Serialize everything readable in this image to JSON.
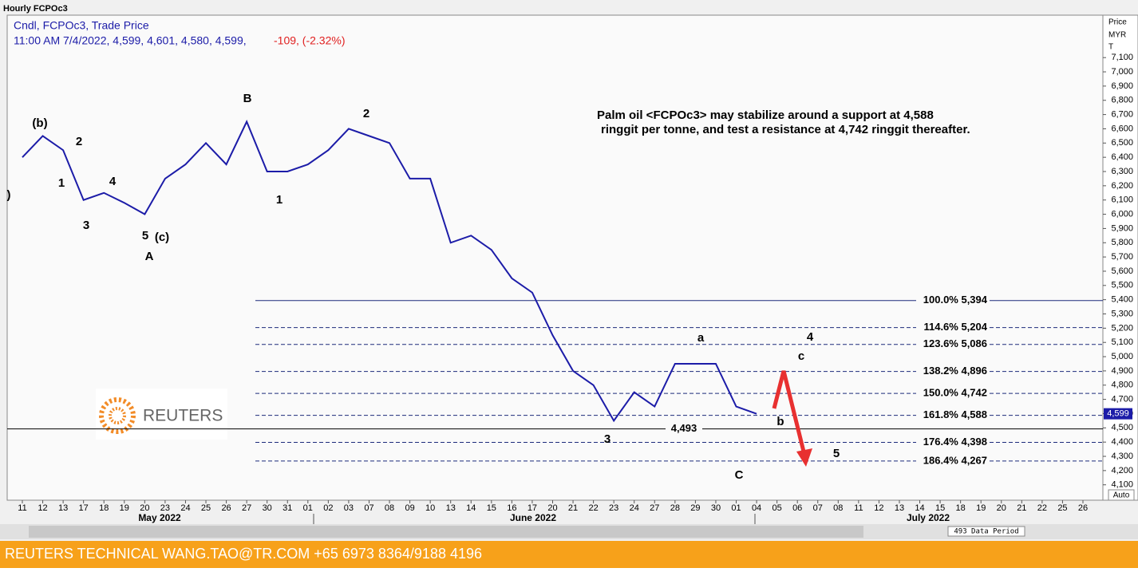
{
  "chart_data": {
    "type": "line",
    "window_title": "Hourly FCPOc3",
    "header_line1": "Cndl, FCPOc3, Trade Price",
    "header_line2": "11:00 AM 7/4/2022, 4,599, 4,601, 4,580, 4,599,",
    "header_change": "-109, (-2.32%)",
    "axis_header": [
      "Price",
      "MYR",
      "T"
    ],
    "commentary": [
      "Palm oil <FCPOc3> may stabilize around a support at 4,588",
      "ringgit per tonne, and test a resistance at 4,742 ringgit thereafter."
    ],
    "categories": [
      "11",
      "12",
      "13",
      "17",
      "18",
      "19",
      "20",
      "23",
      "24",
      "25",
      "26",
      "27",
      "30",
      "31",
      "01",
      "02",
      "03",
      "07",
      "08",
      "09",
      "10",
      "13",
      "14",
      "15",
      "16",
      "17",
      "20",
      "21",
      "22",
      "23",
      "24",
      "27",
      "28",
      "29",
      "30",
      "01",
      "04",
      "05",
      "06",
      "07",
      "08",
      "11",
      "12",
      "13",
      "14",
      "15",
      "18",
      "19",
      "20",
      "21",
      "22",
      "25",
      "26"
    ],
    "months": [
      "May 2022",
      "June 2022",
      "July 2022"
    ],
    "series": [
      {
        "color": "#1c1ca8",
        "values": [
          6400,
          6550,
          6450,
          6100,
          6150,
          6080,
          6000,
          6250,
          6350,
          6500,
          6350,
          6650,
          6300,
          6300,
          6350,
          6450,
          6600,
          6550,
          6500,
          6250,
          6250,
          5800,
          5850,
          5750,
          5550,
          5450,
          5150,
          4900,
          4800,
          4550,
          4750,
          4650,
          4950,
          4950,
          4950,
          4650,
          4599,
          null,
          null,
          null,
          null,
          null,
          null,
          null,
          null,
          null,
          null,
          null,
          null,
          null,
          null,
          null,
          null
        ]
      }
    ],
    "ylim": [
      3992,
      7398
    ],
    "yticks": [
      {
        "value": 4100,
        "label": "4,100"
      },
      {
        "value": 4200,
        "label": "4,200"
      },
      {
        "value": 4300,
        "label": "4,300"
      },
      {
        "value": 4400,
        "label": "4,400"
      },
      {
        "value": 4500,
        "label": "4,500"
      },
      {
        "value": 4600,
        "label": "4,600"
      },
      {
        "value": 4700,
        "label": "4,700"
      },
      {
        "value": 4800,
        "label": "4,800"
      },
      {
        "value": 4900,
        "label": "4,900"
      },
      {
        "value": 5000,
        "label": "5,000"
      },
      {
        "value": 5100,
        "label": "5,100"
      },
      {
        "value": 5200,
        "label": "5,200"
      },
      {
        "value": 5300,
        "label": "5,300"
      },
      {
        "value": 5400,
        "label": "5,400"
      },
      {
        "value": 5500,
        "label": "5,500"
      },
      {
        "value": 5600,
        "label": "5,600"
      },
      {
        "value": 5700,
        "label": "5,700"
      },
      {
        "value": 5800,
        "label": "5,800"
      },
      {
        "value": 5900,
        "label": "5,900"
      },
      {
        "value": 6000,
        "label": "6,000"
      },
      {
        "value": 6100,
        "label": "6,100"
      },
      {
        "value": 6200,
        "label": "6,200"
      },
      {
        "value": 6300,
        "label": "6,300"
      },
      {
        "value": 6400,
        "label": "6,400"
      },
      {
        "value": 6500,
        "label": "6,500"
      },
      {
        "value": 6600,
        "label": "6,600"
      },
      {
        "value": 6700,
        "label": "6,700"
      },
      {
        "value": 6800,
        "label": "6,800"
      },
      {
        "value": 6900,
        "label": "6,900"
      },
      {
        "value": 7000,
        "label": "7,000"
      },
      {
        "value": 7100,
        "label": "7,100"
      }
    ],
    "fib_levels": [
      {
        "value": 5394,
        "label": "100.0% 5,394"
      },
      {
        "value": 5204,
        "label": "114.6% 5,204"
      },
      {
        "value": 5086,
        "label": "123.6% 5,086"
      },
      {
        "value": 4896,
        "label": "138.2% 4,896"
      },
      {
        "value": 4742,
        "label": "150.0% 4,742"
      },
      {
        "value": 4588,
        "label": "161.8% 4,588"
      },
      {
        "value": 4398,
        "label": "176.4% 4,398"
      },
      {
        "value": 4267,
        "label": "186.4% 4,267"
      }
    ],
    "support": {
      "value": 4493,
      "label": "4,493"
    },
    "last_price": {
      "value": 4599,
      "label": "4,599"
    },
    "wave_labels": [
      "(b)",
      "2",
      "1",
      "3",
      "4",
      "5",
      "(c)",
      "A",
      "B",
      "2",
      "1",
      "a",
      "4",
      "c",
      "b",
      "3",
      "5",
      "C",
      ")"
    ],
    "logo_text": "REUTERS",
    "scroll_label": "493 Data Period",
    "auto_label": "Auto",
    "footer": "REUTERS TECHNICAL  WANG.TAO@TR.COM  +65 6973 8364/9188 4196"
  }
}
